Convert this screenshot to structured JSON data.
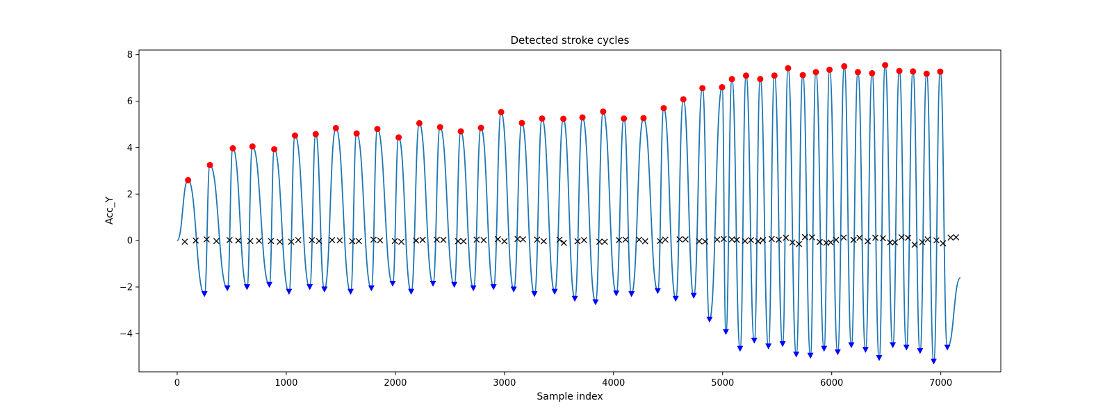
{
  "chart_data": {
    "type": "line",
    "title": "Detected stroke cycles",
    "xlabel": "Sample index",
    "ylabel": "Acc_Y",
    "xlim": [
      -350,
      7550
    ],
    "ylim": [
      -5.65,
      8.2
    ],
    "xticks": [
      0,
      1000,
      2000,
      3000,
      4000,
      5000,
      6000,
      7000
    ],
    "yticks": [
      -4,
      -2,
      0,
      2,
      4,
      6,
      8
    ],
    "grid": false,
    "legend": "none",
    "colors": {
      "signal": "#1f77b4",
      "peaks": "#ff0000",
      "troughs": "#0000ff",
      "crossings": "#000000",
      "axes": "#000000"
    },
    "signal_end": {
      "x": 7180,
      "y": -1.6
    },
    "peaks": {
      "x": [
        100,
        300,
        510,
        690,
        890,
        1080,
        1270,
        1455,
        1645,
        1835,
        2030,
        2220,
        2410,
        2600,
        2785,
        2970,
        3160,
        3345,
        3540,
        3715,
        3905,
        4095,
        4275,
        4460,
        4640,
        4815,
        4995,
        5085,
        5215,
        5345,
        5475,
        5600,
        5735,
        5855,
        5980,
        6115,
        6240,
        6370,
        6490,
        6620,
        6745,
        6870,
        6995
      ],
      "y": [
        2.6,
        3.25,
        3.97,
        4.05,
        3.93,
        4.52,
        4.58,
        4.84,
        4.61,
        4.8,
        4.44,
        5.05,
        4.88,
        4.7,
        4.85,
        5.53,
        5.06,
        5.25,
        5.24,
        5.3,
        5.55,
        5.25,
        5.27,
        5.7,
        6.08,
        6.56,
        6.6,
        6.95,
        7.1,
        6.95,
        7.1,
        7.42,
        7.12,
        7.25,
        7.35,
        7.5,
        7.25,
        7.2,
        7.55,
        7.3,
        7.28,
        7.18,
        7.27
      ]
    },
    "troughs": {
      "x": [
        250,
        460,
        640,
        845,
        1025,
        1215,
        1350,
        1590,
        1780,
        1975,
        2145,
        2345,
        2540,
        2715,
        2900,
        3085,
        3275,
        3460,
        3645,
        3835,
        4025,
        4165,
        4405,
        4570,
        4735,
        4880,
        5030,
        5160,
        5290,
        5420,
        5550,
        5675,
        5805,
        5930,
        6055,
        6180,
        6310,
        6435,
        6560,
        6685,
        6810,
        6935,
        7060
      ],
      "y": [
        -2.3,
        -2.05,
        -2.0,
        -1.9,
        -2.2,
        -2.0,
        -2.1,
        -2.2,
        -2.05,
        -1.85,
        -2.2,
        -1.85,
        -1.9,
        -2.05,
        -2.0,
        -2.1,
        -2.3,
        -2.2,
        -2.5,
        -2.65,
        -2.27,
        -2.3,
        -2.17,
        -2.5,
        -2.37,
        -3.4,
        -3.93,
        -4.65,
        -4.3,
        -4.55,
        -4.45,
        -4.9,
        -4.95,
        -4.65,
        -4.8,
        -4.5,
        -4.7,
        -5.05,
        -4.5,
        -4.6,
        -4.75,
        -5.2,
        -4.6
      ]
    },
    "crossings": {
      "x": [
        70,
        170,
        270,
        360,
        480,
        560,
        670,
        750,
        860,
        940,
        1045,
        1110,
        1235,
        1300,
        1420,
        1490,
        1605,
        1665,
        1800,
        1860,
        1995,
        2055,
        2190,
        2250,
        2380,
        2440,
        2575,
        2625,
        2745,
        2810,
        2940,
        3000,
        3120,
        3170,
        3300,
        3360,
        3505,
        3545,
        3670,
        3730,
        3870,
        3920,
        4050,
        4110,
        4235,
        4290,
        4425,
        4475,
        4605,
        4660,
        4785,
        4840,
        4950,
        5010,
        5085,
        5130,
        5205,
        5260,
        5325,
        5370,
        5450,
        5515,
        5580,
        5640,
        5700,
        5755,
        5820,
        5890,
        5950,
        5990,
        6040,
        6110,
        6200,
        6255,
        6330,
        6400,
        6470,
        6535,
        6580,
        6640,
        6700,
        6760,
        6830,
        6880,
        6960,
        7020,
        7090,
        7140
      ],
      "y": [
        -0.05,
        0.0,
        0.05,
        -0.02,
        0.02,
        0.0,
        -0.02,
        -0.01,
        -0.02,
        -0.05,
        -0.05,
        0.02,
        0.02,
        -0.02,
        0.02,
        0.01,
        -0.03,
        -0.02,
        0.04,
        0.01,
        -0.02,
        -0.05,
        0.0,
        0.03,
        0.04,
        0.03,
        -0.03,
        -0.03,
        0.04,
        0.02,
        0.06,
        -0.03,
        0.07,
        0.05,
        0.04,
        -0.03,
        0.04,
        -0.1,
        -0.03,
        0.02,
        -0.05,
        -0.05,
        0.02,
        0.04,
        0.04,
        -0.03,
        -0.02,
        0.04,
        0.05,
        0.05,
        -0.03,
        -0.04,
        0.04,
        0.07,
        0.05,
        0.03,
        -0.02,
        0.02,
        -0.03,
        0.02,
        0.07,
        0.04,
        0.12,
        -0.08,
        -0.15,
        0.15,
        0.14,
        -0.06,
        -0.1,
        -0.08,
        0.03,
        0.13,
        0.03,
        0.12,
        -0.03,
        0.12,
        0.1,
        -0.08,
        -0.08,
        0.14,
        0.12,
        -0.18,
        -0.07,
        0.05,
        0.01,
        -0.12,
        0.13,
        0.14
      ]
    }
  }
}
